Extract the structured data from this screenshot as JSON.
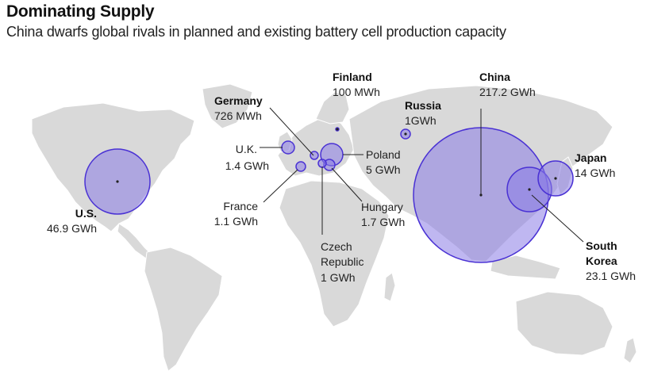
{
  "header": {
    "title": "Dominating Supply",
    "subtitle": "China dwarfs global rivals in planned and existing battery cell production capacity"
  },
  "colors": {
    "bubble_fill": "#8b7be6",
    "bubble_stroke": "#4a32d4",
    "land": "#d9d9d9"
  },
  "countries": [
    {
      "id": "us",
      "name": "U.S.",
      "value": "46.9 GWh",
      "gwh": 46.9,
      "bold": true
    },
    {
      "id": "finland",
      "name": "Finland",
      "value": "100 MWh",
      "gwh": 0.1,
      "bold": true
    },
    {
      "id": "germany",
      "name": "Germany",
      "value": "726 MWh",
      "gwh": 0.726,
      "bold": true
    },
    {
      "id": "russia",
      "name": "Russia",
      "value": "1GWh",
      "gwh": 1,
      "bold": true
    },
    {
      "id": "china",
      "name": "China",
      "value": "217.2 GWh",
      "gwh": 217.2,
      "bold": true
    },
    {
      "id": "japan",
      "name": "Japan",
      "value": "14 GWh",
      "gwh": 14,
      "bold": true
    },
    {
      "id": "south_korea",
      "name_line1": "South",
      "name_line2": "Korea",
      "value": "23.1 GWh",
      "gwh": 23.1,
      "bold": true
    },
    {
      "id": "uk",
      "name": "U.K.",
      "value": "1.4 GWh",
      "gwh": 1.4,
      "bold": false
    },
    {
      "id": "france",
      "name": "France",
      "value": "1.1 GWh",
      "gwh": 1.1,
      "bold": false
    },
    {
      "id": "poland",
      "name": "Poland",
      "value": "5 GWh",
      "gwh": 5,
      "bold": false
    },
    {
      "id": "hungary",
      "name": "Hungary",
      "value": "1.7 GWh",
      "gwh": 1.7,
      "bold": false
    },
    {
      "id": "czech",
      "name_line1": "Czech",
      "name_line2": "Republic",
      "value": "1 GWh",
      "gwh": 1,
      "bold": false
    }
  ]
}
